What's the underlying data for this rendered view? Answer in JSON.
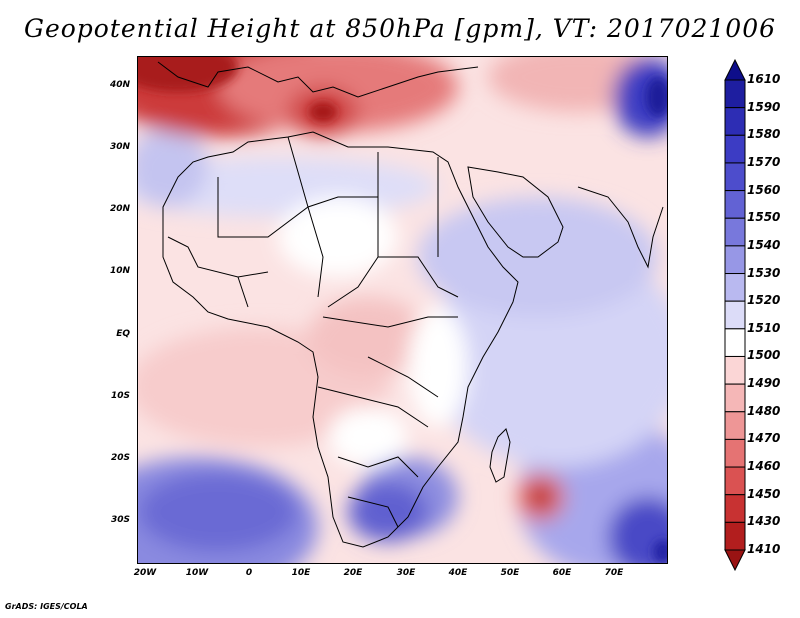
{
  "title": "Geopotential Height at 850hPa [gpm], VT: 2017021006",
  "footer": "GrADS: IGES/COLA",
  "map": {
    "lat_labels": [
      "40N",
      "30N",
      "20N",
      "10N",
      "EQ",
      "10S",
      "20S",
      "30S"
    ],
    "lon_labels": [
      "20W",
      "10W",
      "0",
      "10E",
      "20E",
      "30E",
      "40E",
      "50E",
      "60E",
      "70E"
    ]
  },
  "colorbar": {
    "labels": [
      "1610",
      "1590",
      "1580",
      "1570",
      "1560",
      "1550",
      "1540",
      "1530",
      "1520",
      "1510",
      "1500",
      "1490",
      "1480",
      "1470",
      "1460",
      "1450",
      "1430",
      "1410"
    ],
    "colors": [
      "#0e0e8a",
      "#1e1ea0",
      "#2d2db4",
      "#3c3cc4",
      "#4d4dcc",
      "#6262d4",
      "#7878dc",
      "#9797e6",
      "#b9b9f0",
      "#dcdcf8",
      "#ffffff",
      "#fbd6d6",
      "#f5b7b7",
      "#ee9696",
      "#e57373",
      "#da5252",
      "#c83232",
      "#b21e1e",
      "#9a1313"
    ]
  }
}
